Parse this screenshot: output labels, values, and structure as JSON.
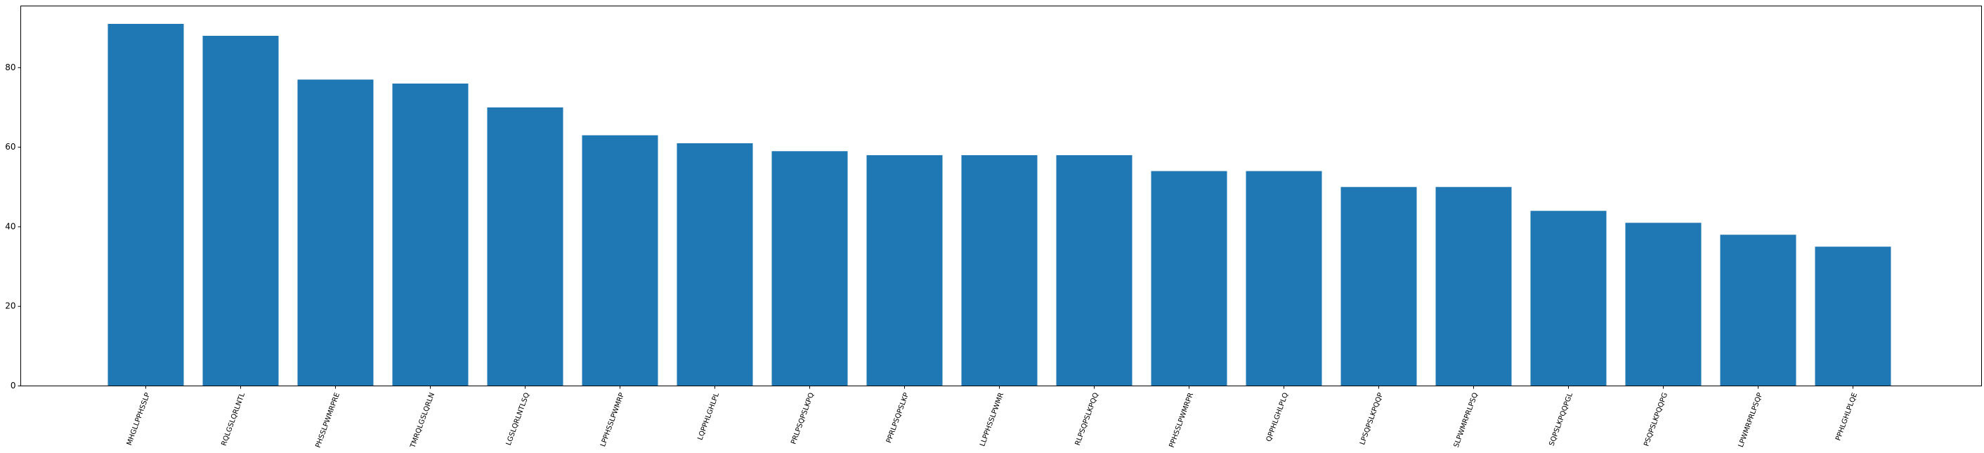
{
  "chart_data": {
    "type": "bar",
    "title": "",
    "xlabel": "",
    "ylabel": "",
    "categories": [
      "MHGLLPPHSSLP",
      "RQLGSLQRLNTL",
      "PHSSLPWMRPRE",
      "TMRQLGSLQRLN",
      "LGSLQRLNTLSQ",
      "LPPHSSLPWMRP",
      "LQPPHLGHLPL",
      "PRLPSQPSLKPQ",
      "PPRLPSQPSLKP",
      "LLPPHSSLPWMR",
      "RLPSQPSLKPQQ",
      "PPHSSLPWMRPR",
      "QPPHLGHLPLQ",
      "LPSQPSLKPQQP",
      "SLPWMRPRLPSQ",
      "SQPSLKPQQPGL",
      "PSQPSLKPQQPG",
      "LPWMRPRLPSQP",
      "PPHLGHLPLQE"
    ],
    "values": [
      91,
      88,
      77,
      76,
      70,
      63,
      61,
      59,
      58,
      58,
      58,
      54,
      54,
      50,
      50,
      44,
      41,
      38,
      35
    ],
    "yticks": [
      0,
      20,
      40,
      60,
      80
    ],
    "ylim": [
      0,
      95.5
    ],
    "grid": false,
    "bar_color": "#1f77b4"
  }
}
